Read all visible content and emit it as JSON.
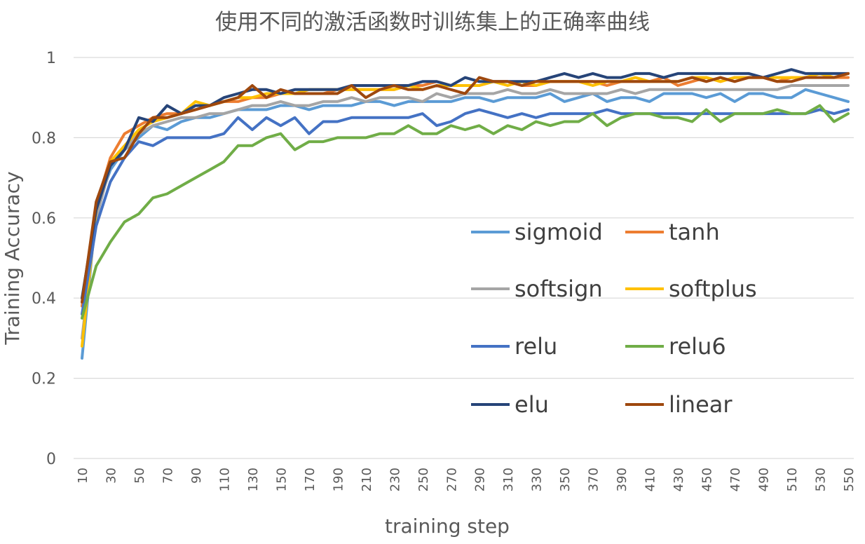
{
  "chart_data": {
    "type": "line",
    "title": "使用不同的激活函数时训练集上的正确率曲线",
    "xlabel": "training step",
    "ylabel": "Training Accuracy",
    "ylim": [
      0,
      1
    ],
    "yticks": [
      "0",
      "0.2",
      "0.4",
      "0.6",
      "0.8",
      "1"
    ],
    "x_tick_labels": [
      "10",
      "30",
      "50",
      "70",
      "90",
      "110",
      "130",
      "150",
      "170",
      "190",
      "210",
      "230",
      "250",
      "270",
      "290",
      "310",
      "330",
      "350",
      "370",
      "390",
      "410",
      "430",
      "450",
      "470",
      "490",
      "510",
      "530",
      "550"
    ],
    "x": [
      10,
      20,
      30,
      40,
      50,
      60,
      70,
      80,
      90,
      100,
      110,
      120,
      130,
      140,
      150,
      160,
      170,
      180,
      190,
      200,
      210,
      220,
      230,
      240,
      250,
      260,
      270,
      280,
      290,
      300,
      310,
      320,
      330,
      340,
      350,
      360,
      370,
      380,
      390,
      400,
      410,
      420,
      430,
      440,
      450,
      460,
      470,
      480,
      490,
      500,
      510,
      520,
      530,
      540,
      550
    ],
    "grid": true,
    "legend_position": "center-right",
    "series": [
      {
        "name": "sigmoid",
        "color": "#5b9bd5",
        "values": [
          0.25,
          0.62,
          0.72,
          0.77,
          0.8,
          0.83,
          0.82,
          0.84,
          0.85,
          0.85,
          0.86,
          0.87,
          0.87,
          0.87,
          0.88,
          0.88,
          0.87,
          0.88,
          0.88,
          0.88,
          0.89,
          0.89,
          0.88,
          0.89,
          0.89,
          0.89,
          0.89,
          0.9,
          0.9,
          0.89,
          0.9,
          0.9,
          0.9,
          0.91,
          0.89,
          0.9,
          0.91,
          0.89,
          0.9,
          0.9,
          0.89,
          0.91,
          0.91,
          0.91,
          0.9,
          0.91,
          0.89,
          0.91,
          0.91,
          0.9,
          0.9,
          0.92,
          0.91,
          0.9,
          0.89
        ]
      },
      {
        "name": "tanh",
        "color": "#ed7d31",
        "values": [
          0.38,
          0.63,
          0.75,
          0.81,
          0.83,
          0.85,
          0.86,
          0.86,
          0.87,
          0.88,
          0.89,
          0.89,
          0.9,
          0.9,
          0.91,
          0.91,
          0.91,
          0.91,
          0.92,
          0.92,
          0.92,
          0.92,
          0.92,
          0.93,
          0.93,
          0.94,
          0.93,
          0.93,
          0.93,
          0.94,
          0.94,
          0.93,
          0.93,
          0.94,
          0.94,
          0.94,
          0.94,
          0.93,
          0.94,
          0.94,
          0.94,
          0.95,
          0.93,
          0.94,
          0.95,
          0.94,
          0.95,
          0.95,
          0.95,
          0.94,
          0.95,
          0.95,
          0.96,
          0.95,
          0.95
        ]
      },
      {
        "name": "softsign",
        "color": "#a5a5a5",
        "values": [
          0.3,
          0.6,
          0.73,
          0.77,
          0.81,
          0.83,
          0.84,
          0.85,
          0.85,
          0.86,
          0.86,
          0.87,
          0.88,
          0.88,
          0.89,
          0.88,
          0.88,
          0.89,
          0.89,
          0.9,
          0.89,
          0.9,
          0.9,
          0.9,
          0.89,
          0.91,
          0.9,
          0.91,
          0.91,
          0.91,
          0.92,
          0.91,
          0.91,
          0.92,
          0.91,
          0.91,
          0.91,
          0.91,
          0.92,
          0.91,
          0.92,
          0.92,
          0.92,
          0.92,
          0.92,
          0.92,
          0.92,
          0.92,
          0.92,
          0.92,
          0.93,
          0.93,
          0.93,
          0.93,
          0.93
        ]
      },
      {
        "name": "softplus",
        "color": "#ffc000",
        "values": [
          0.28,
          0.62,
          0.74,
          0.78,
          0.82,
          0.84,
          0.85,
          0.86,
          0.89,
          0.88,
          0.89,
          0.9,
          0.9,
          0.91,
          0.91,
          0.91,
          0.92,
          0.92,
          0.92,
          0.92,
          0.92,
          0.92,
          0.92,
          0.93,
          0.92,
          0.93,
          0.93,
          0.93,
          0.93,
          0.94,
          0.93,
          0.94,
          0.93,
          0.94,
          0.94,
          0.94,
          0.93,
          0.94,
          0.94,
          0.95,
          0.94,
          0.94,
          0.94,
          0.95,
          0.95,
          0.94,
          0.95,
          0.95,
          0.95,
          0.95,
          0.95,
          0.95,
          0.96,
          0.95,
          0.96
        ]
      },
      {
        "name": "relu",
        "color": "#4472c4",
        "values": [
          0.36,
          0.58,
          0.69,
          0.75,
          0.79,
          0.78,
          0.8,
          0.8,
          0.8,
          0.8,
          0.81,
          0.85,
          0.82,
          0.85,
          0.83,
          0.85,
          0.81,
          0.84,
          0.84,
          0.85,
          0.85,
          0.85,
          0.85,
          0.85,
          0.86,
          0.83,
          0.84,
          0.86,
          0.87,
          0.86,
          0.85,
          0.86,
          0.85,
          0.86,
          0.86,
          0.86,
          0.86,
          0.87,
          0.86,
          0.86,
          0.86,
          0.86,
          0.86,
          0.86,
          0.86,
          0.86,
          0.86,
          0.86,
          0.86,
          0.86,
          0.86,
          0.86,
          0.87,
          0.86,
          0.87
        ]
      },
      {
        "name": "relu6",
        "color": "#70ad47",
        "values": [
          0.35,
          0.48,
          0.54,
          0.59,
          0.61,
          0.65,
          0.66,
          0.68,
          0.7,
          0.72,
          0.74,
          0.78,
          0.78,
          0.8,
          0.81,
          0.77,
          0.79,
          0.79,
          0.8,
          0.8,
          0.8,
          0.81,
          0.81,
          0.83,
          0.81,
          0.81,
          0.83,
          0.82,
          0.83,
          0.81,
          0.83,
          0.82,
          0.84,
          0.83,
          0.84,
          0.84,
          0.86,
          0.83,
          0.85,
          0.86,
          0.86,
          0.85,
          0.85,
          0.84,
          0.87,
          0.84,
          0.86,
          0.86,
          0.86,
          0.87,
          0.86,
          0.86,
          0.88,
          0.84,
          0.86
        ]
      },
      {
        "name": "elu",
        "color": "#264478",
        "values": [
          0.4,
          0.62,
          0.73,
          0.77,
          0.85,
          0.84,
          0.88,
          0.86,
          0.88,
          0.88,
          0.9,
          0.91,
          0.92,
          0.92,
          0.91,
          0.92,
          0.92,
          0.92,
          0.92,
          0.93,
          0.93,
          0.93,
          0.93,
          0.93,
          0.94,
          0.94,
          0.93,
          0.95,
          0.94,
          0.94,
          0.94,
          0.94,
          0.94,
          0.95,
          0.96,
          0.95,
          0.96,
          0.95,
          0.95,
          0.96,
          0.96,
          0.95,
          0.96,
          0.96,
          0.96,
          0.96,
          0.96,
          0.96,
          0.95,
          0.96,
          0.97,
          0.96,
          0.96,
          0.96,
          0.96
        ]
      },
      {
        "name": "linear",
        "color": "#9e480e",
        "values": [
          0.39,
          0.64,
          0.74,
          0.75,
          0.81,
          0.85,
          0.85,
          0.86,
          0.87,
          0.88,
          0.89,
          0.9,
          0.93,
          0.9,
          0.92,
          0.91,
          0.91,
          0.91,
          0.91,
          0.93,
          0.9,
          0.92,
          0.93,
          0.92,
          0.92,
          0.93,
          0.92,
          0.91,
          0.95,
          0.94,
          0.94,
          0.93,
          0.94,
          0.94,
          0.94,
          0.94,
          0.94,
          0.94,
          0.94,
          0.94,
          0.94,
          0.94,
          0.94,
          0.95,
          0.94,
          0.95,
          0.94,
          0.95,
          0.95,
          0.94,
          0.94,
          0.95,
          0.95,
          0.95,
          0.96
        ]
      }
    ]
  }
}
